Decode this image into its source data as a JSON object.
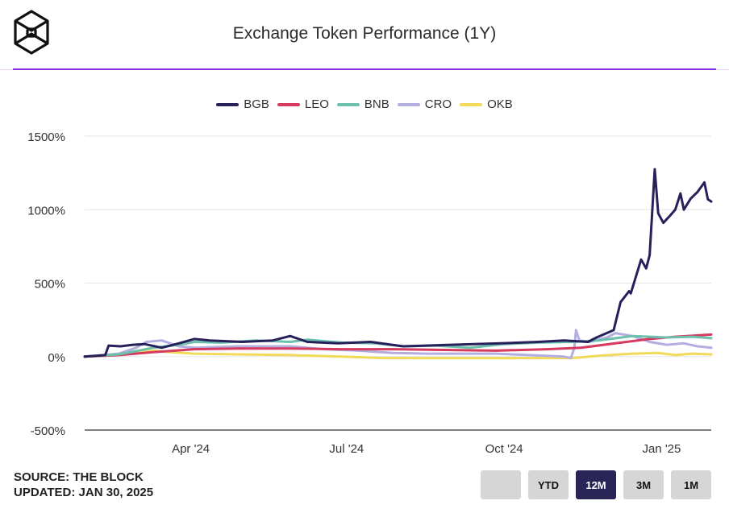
{
  "header": {
    "title": "Exchange Token Performance (1Y)",
    "logo": "The Block"
  },
  "footer": {
    "source": "SOURCE: THE BLOCK",
    "updated": "UPDATED: JAN 30, 2025"
  },
  "range_buttons": [
    {
      "label": "",
      "active": false
    },
    {
      "label": "YTD",
      "active": false
    },
    {
      "label": "12M",
      "active": true
    },
    {
      "label": "3M",
      "active": false
    },
    {
      "label": "1M",
      "active": false
    }
  ],
  "chart_data": {
    "type": "line",
    "title": "Exchange Token Performance (1Y)",
    "xlabel": "",
    "ylabel": "",
    "x_unit": "days since Jan 30, 2024",
    "xlim": [
      0,
      366
    ],
    "ylim": [
      -500,
      1500
    ],
    "yticks": [
      {
        "v": 1500,
        "label": "1500%"
      },
      {
        "v": 1000,
        "label": "1000%"
      },
      {
        "v": 500,
        "label": "500%"
      },
      {
        "v": 0,
        "label": "0%"
      },
      {
        "v": -500,
        "label": "-500%"
      }
    ],
    "xticks": [
      {
        "d": 62,
        "label": "Apr '24"
      },
      {
        "d": 153,
        "label": "Jul '24"
      },
      {
        "d": 245,
        "label": "Oct '24"
      },
      {
        "d": 337,
        "label": "Jan '25"
      }
    ],
    "grid": true,
    "legend": "top-center",
    "series": [
      {
        "name": "BGB",
        "color": "#26215a",
        "points": [
          [
            0,
            0
          ],
          [
            12,
            10
          ],
          [
            14,
            75
          ],
          [
            21,
            70
          ],
          [
            28,
            80
          ],
          [
            35,
            85
          ],
          [
            45,
            60
          ],
          [
            55,
            90
          ],
          [
            64,
            120
          ],
          [
            73,
            110
          ],
          [
            92,
            100
          ],
          [
            110,
            110
          ],
          [
            120,
            140
          ],
          [
            130,
            100
          ],
          [
            148,
            90
          ],
          [
            167,
            100
          ],
          [
            186,
            70
          ],
          [
            214,
            80
          ],
          [
            243,
            90
          ],
          [
            265,
            100
          ],
          [
            280,
            110
          ],
          [
            294,
            100
          ],
          [
            299,
            130
          ],
          [
            309,
            180
          ],
          [
            313,
            370
          ],
          [
            318,
            445
          ],
          [
            319,
            430
          ],
          [
            325,
            660
          ],
          [
            328,
            600
          ],
          [
            330,
            690
          ],
          [
            333,
            1275
          ],
          [
            335,
            975
          ],
          [
            338,
            910
          ],
          [
            342,
            960
          ],
          [
            345,
            1000
          ],
          [
            348,
            1110
          ],
          [
            350,
            1000
          ],
          [
            354,
            1075
          ],
          [
            358,
            1120
          ],
          [
            362,
            1185
          ],
          [
            364,
            1070
          ],
          [
            366,
            1055
          ]
        ]
      },
      {
        "name": "LEO",
        "color": "#d63a5e",
        "points": [
          [
            0,
            0
          ],
          [
            20,
            10
          ],
          [
            40,
            30
          ],
          [
            64,
            50
          ],
          [
            90,
            55
          ],
          [
            120,
            55
          ],
          [
            150,
            50
          ],
          [
            180,
            50
          ],
          [
            210,
            45
          ],
          [
            240,
            40
          ],
          [
            270,
            50
          ],
          [
            290,
            60
          ],
          [
            310,
            90
          ],
          [
            330,
            120
          ],
          [
            345,
            135
          ],
          [
            366,
            150
          ]
        ]
      },
      {
        "name": "BNB",
        "color": "#6cc0ad",
        "points": [
          [
            0,
            0
          ],
          [
            20,
            15
          ],
          [
            40,
            60
          ],
          [
            55,
            80
          ],
          [
            64,
            100
          ],
          [
            80,
            95
          ],
          [
            100,
            110
          ],
          [
            120,
            100
          ],
          [
            130,
            115
          ],
          [
            150,
            95
          ],
          [
            170,
            90
          ],
          [
            186,
            70
          ],
          [
            205,
            75
          ],
          [
            225,
            60
          ],
          [
            245,
            85
          ],
          [
            265,
            95
          ],
          [
            285,
            100
          ],
          [
            300,
            110
          ],
          [
            320,
            140
          ],
          [
            340,
            130
          ],
          [
            355,
            135
          ],
          [
            366,
            125
          ]
        ]
      },
      {
        "name": "CRO",
        "color": "#b3aee0",
        "points": [
          [
            0,
            0
          ],
          [
            20,
            20
          ],
          [
            30,
            60
          ],
          [
            36,
            100
          ],
          [
            45,
            110
          ],
          [
            55,
            70
          ],
          [
            64,
            60
          ],
          [
            90,
            70
          ],
          [
            120,
            70
          ],
          [
            140,
            50
          ],
          [
            160,
            40
          ],
          [
            180,
            25
          ],
          [
            200,
            20
          ],
          [
            220,
            20
          ],
          [
            240,
            20
          ],
          [
            260,
            10
          ],
          [
            280,
            0
          ],
          [
            284,
            -10
          ],
          [
            286,
            60
          ],
          [
            287,
            180
          ],
          [
            289,
            110
          ],
          [
            295,
            100
          ],
          [
            305,
            130
          ],
          [
            310,
            160
          ],
          [
            320,
            140
          ],
          [
            330,
            100
          ],
          [
            340,
            80
          ],
          [
            350,
            90
          ],
          [
            358,
            70
          ],
          [
            366,
            60
          ]
        ]
      },
      {
        "name": "OKB",
        "color": "#f1da5a",
        "points": [
          [
            0,
            0
          ],
          [
            20,
            10
          ],
          [
            30,
            25
          ],
          [
            40,
            40
          ],
          [
            50,
            30
          ],
          [
            64,
            20
          ],
          [
            90,
            15
          ],
          [
            120,
            10
          ],
          [
            150,
            0
          ],
          [
            175,
            -10
          ],
          [
            200,
            -10
          ],
          [
            230,
            -10
          ],
          [
            260,
            -10
          ],
          [
            285,
            -10
          ],
          [
            300,
            5
          ],
          [
            320,
            20
          ],
          [
            335,
            25
          ],
          [
            345,
            10
          ],
          [
            355,
            20
          ],
          [
            366,
            15
          ]
        ]
      }
    ]
  }
}
